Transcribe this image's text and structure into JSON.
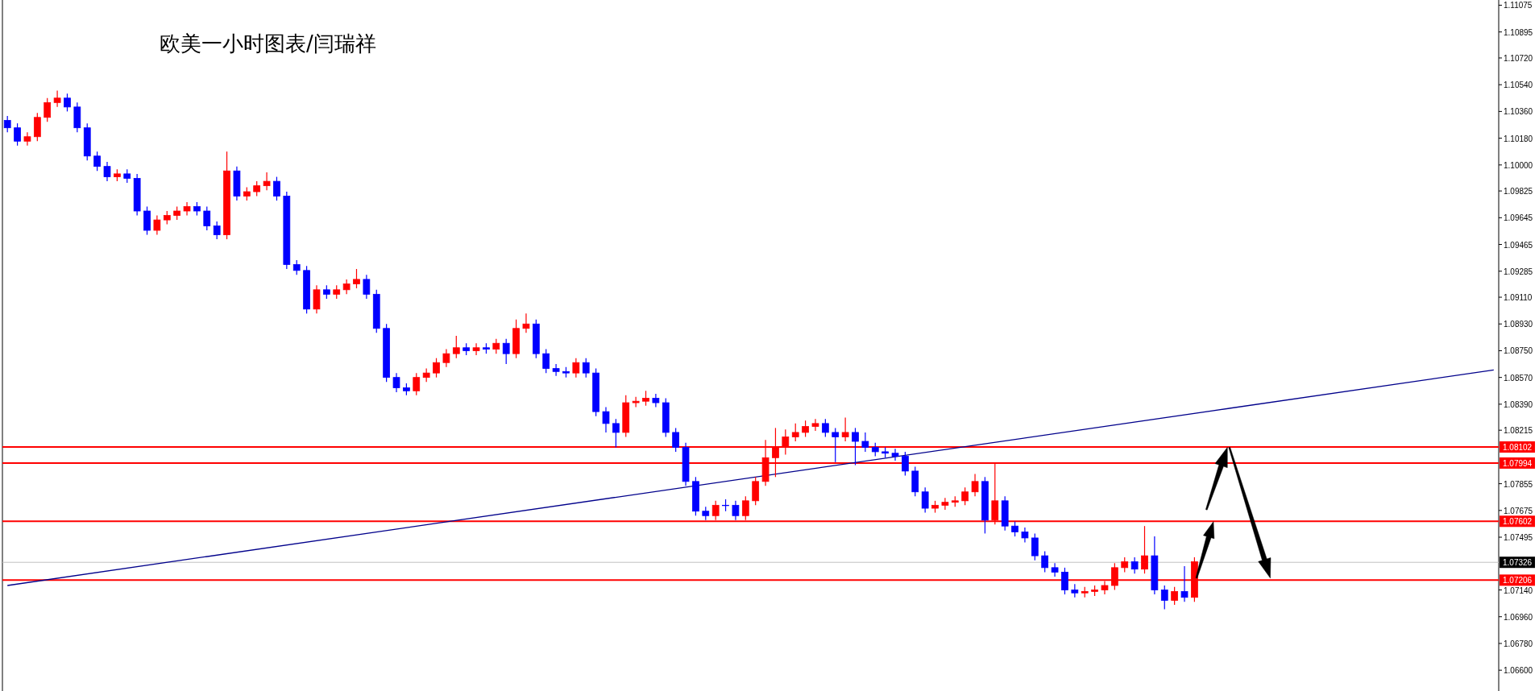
{
  "chart_data": {
    "type": "candlestick",
    "title": "欧美一小时图表/闫瑞祥",
    "categories": [
      null,
      null,
      null,
      null,
      null,
      null,
      null,
      null,
      null,
      null,
      null,
      null,
      null,
      null,
      null,
      null,
      null,
      null,
      null,
      null,
      null,
      null,
      null,
      null,
      null,
      null,
      null,
      null,
      null,
      null,
      null,
      null,
      null,
      null,
      null,
      null,
      null,
      null,
      null,
      null,
      null,
      null,
      null,
      null,
      null,
      null,
      null,
      null,
      null,
      null,
      null,
      null,
      null,
      null,
      null,
      null,
      null,
      null,
      null,
      null,
      null,
      null,
      null,
      null,
      null,
      null,
      null,
      null,
      null,
      null,
      null,
      null,
      null,
      null,
      null,
      null,
      null,
      null,
      null,
      null,
      null,
      null,
      null,
      null,
      null,
      null,
      null,
      null,
      null,
      null,
      null,
      null,
      null,
      null,
      null,
      null,
      null,
      null,
      null,
      null,
      null,
      null,
      null,
      null,
      null,
      null,
      null,
      null,
      null,
      null,
      null,
      null,
      null,
      null,
      null,
      null,
      null,
      null,
      null,
      null,
      null,
      null,
      null,
      null,
      null,
      null,
      null,
      null,
      null,
      null,
      null,
      null,
      null,
      null,
      null,
      null,
      null,
      null,
      null,
      null,
      null,
      null,
      null,
      null,
      null,
      null,
      null,
      null,
      null,
      null
    ],
    "ohlc": [
      [
        1.103,
        1.1033,
        1.1022,
        1.1025
      ],
      [
        1.1025,
        1.1028,
        1.1013,
        1.1016
      ],
      [
        1.1016,
        1.1022,
        1.1013,
        1.1019
      ],
      [
        1.1019,
        1.1035,
        1.1016,
        1.1032
      ],
      [
        1.1032,
        1.1045,
        1.1029,
        1.1042
      ],
      [
        1.1042,
        1.105,
        1.1039,
        1.1045
      ],
      [
        1.1045,
        1.1048,
        1.1036,
        1.1039
      ],
      [
        1.1039,
        1.1042,
        1.1022,
        1.1025
      ],
      [
        1.1025,
        1.1028,
        1.1003,
        1.1006
      ],
      [
        1.1006,
        1.1009,
        1.0996,
        1.0999
      ],
      [
        1.0999,
        1.1002,
        1.0989,
        1.0992
      ],
      [
        1.0992,
        1.0997,
        1.0989,
        1.0994
      ],
      [
        1.0994,
        1.0997,
        1.0988,
        1.0991
      ],
      [
        1.0991,
        1.0994,
        1.0966,
        1.0969
      ],
      [
        1.0969,
        1.0972,
        1.0953,
        1.0956
      ],
      [
        1.0956,
        1.0966,
        1.0953,
        1.0963
      ],
      [
        1.0963,
        1.0969,
        1.096,
        1.0966
      ],
      [
        1.0966,
        1.0972,
        1.0963,
        1.0969
      ],
      [
        1.0969,
        1.0975,
        1.0966,
        1.0972
      ],
      [
        1.0972,
        1.0975,
        1.0966,
        1.0969
      ],
      [
        1.0969,
        1.0972,
        1.0956,
        1.0959
      ],
      [
        1.0959,
        1.0962,
        1.095,
        1.0953
      ],
      [
        1.0953,
        1.1009,
        1.095,
        1.0996
      ],
      [
        1.0996,
        1.0999,
        1.0976,
        1.0979
      ],
      [
        1.0979,
        1.0985,
        1.0976,
        1.0982
      ],
      [
        1.0982,
        1.0989,
        1.0979,
        1.0986
      ],
      [
        1.0986,
        1.0995,
        1.0983,
        1.0989
      ],
      [
        1.0989,
        1.0992,
        1.0976,
        1.0979
      ],
      [
        1.0979,
        1.0982,
        1.093,
        1.0933
      ],
      [
        1.0933,
        1.0936,
        1.0926,
        1.0929
      ],
      [
        1.0929,
        1.0932,
        1.09,
        1.0903
      ],
      [
        1.0903,
        1.0919,
        1.09,
        1.0916
      ],
      [
        1.0916,
        1.0919,
        1.091,
        1.0913
      ],
      [
        1.0913,
        1.0919,
        1.091,
        1.0916
      ],
      [
        1.0916,
        1.0923,
        1.0913,
        1.092
      ],
      [
        1.092,
        1.093,
        1.0917,
        1.0923
      ],
      [
        1.0923,
        1.0926,
        1.091,
        1.0913
      ],
      [
        1.0913,
        1.0916,
        1.0887,
        1.089
      ],
      [
        1.089,
        1.0893,
        1.0854,
        1.0857
      ],
      [
        1.0857,
        1.086,
        1.0847,
        1.085
      ],
      [
        1.085,
        1.0853,
        1.0845,
        1.0848
      ],
      [
        1.0848,
        1.086,
        1.0845,
        1.0857
      ],
      [
        1.0857,
        1.0863,
        1.0854,
        1.086
      ],
      [
        1.086,
        1.087,
        1.0857,
        1.0867
      ],
      [
        1.0867,
        1.0876,
        1.0864,
        1.0873
      ],
      [
        1.0873,
        1.0885,
        1.087,
        1.0877
      ],
      [
        1.0877,
        1.088,
        1.0872,
        1.0875
      ],
      [
        1.0875,
        1.088,
        1.0872,
        1.0877
      ],
      [
        1.0877,
        1.088,
        1.0873,
        1.0876
      ],
      [
        1.0876,
        1.0883,
        1.0873,
        1.088
      ],
      [
        1.088,
        1.0883,
        1.0866,
        1.0873
      ],
      [
        1.0873,
        1.0896,
        1.087,
        1.089
      ],
      [
        1.089,
        1.09,
        1.0887,
        1.0893
      ],
      [
        1.0893,
        1.0896,
        1.087,
        1.0873
      ],
      [
        1.0873,
        1.0876,
        1.086,
        1.0863
      ],
      [
        1.0863,
        1.0866,
        1.0858,
        1.0861
      ],
      [
        1.0861,
        1.0864,
        1.0857,
        1.086
      ],
      [
        1.086,
        1.087,
        1.0857,
        1.0867
      ],
      [
        1.0867,
        1.087,
        1.0857,
        1.086
      ],
      [
        1.086,
        1.0863,
        1.0831,
        1.0834
      ],
      [
        1.0834,
        1.0837,
        1.082,
        1.0826
      ],
      [
        1.0826,
        1.0829,
        1.081,
        1.082
      ],
      [
        1.082,
        1.0845,
        1.0817,
        1.084
      ],
      [
        1.084,
        1.0844,
        1.0837,
        1.0841
      ],
      [
        1.0841,
        1.0848,
        1.0838,
        1.0843
      ],
      [
        1.0843,
        1.0846,
        1.0837,
        1.084
      ],
      [
        1.084,
        1.0843,
        1.0817,
        1.082
      ],
      [
        1.082,
        1.0823,
        1.0807,
        1.081
      ],
      [
        1.081,
        1.0813,
        1.0784,
        1.0787
      ],
      [
        1.0787,
        1.079,
        1.0764,
        1.0767
      ],
      [
        1.0767,
        1.077,
        1.0761,
        1.0764
      ],
      [
        1.0764,
        1.0774,
        1.0761,
        1.0771
      ],
      [
        1.0771,
        1.0775,
        1.0767,
        1.0771
      ],
      [
        1.0771,
        1.0774,
        1.0761,
        1.0764
      ],
      [
        1.0764,
        1.0777,
        1.0761,
        1.0774
      ],
      [
        1.0774,
        1.079,
        1.0771,
        1.0787
      ],
      [
        1.0787,
        1.0815,
        1.0784,
        1.0803
      ],
      [
        1.0803,
        1.0823,
        1.079,
        1.081
      ],
      [
        1.081,
        1.0822,
        1.0805,
        1.0817
      ],
      [
        1.0817,
        1.0826,
        1.0814,
        1.082
      ],
      [
        1.082,
        1.0828,
        1.0817,
        1.0824
      ],
      [
        1.0824,
        1.0829,
        1.0821,
        1.0826
      ],
      [
        1.0826,
        1.0829,
        1.0817,
        1.082
      ],
      [
        1.082,
        1.0823,
        1.08,
        1.0817
      ],
      [
        1.0817,
        1.083,
        1.0814,
        1.082
      ],
      [
        1.082,
        1.0823,
        1.0798,
        1.0814
      ],
      [
        1.0814,
        1.082,
        1.0807,
        1.081
      ],
      [
        1.081,
        1.0813,
        1.0804,
        1.0807
      ],
      [
        1.0807,
        1.081,
        1.0803,
        1.0806
      ],
      [
        1.0806,
        1.0809,
        1.0801,
        1.0804
      ],
      [
        1.0804,
        1.0807,
        1.0791,
        1.0794
      ],
      [
        1.0794,
        1.0797,
        1.0777,
        1.078
      ],
      [
        1.078,
        1.0783,
        1.0766,
        1.0769
      ],
      [
        1.0769,
        1.0774,
        1.0766,
        1.0771
      ],
      [
        1.0771,
        1.0776,
        1.0768,
        1.0773
      ],
      [
        1.0773,
        1.0777,
        1.077,
        1.0774
      ],
      [
        1.0774,
        1.0783,
        1.0771,
        1.078
      ],
      [
        1.078,
        1.0792,
        1.0777,
        1.0787
      ],
      [
        1.0787,
        1.079,
        1.0752,
        1.0761
      ],
      [
        1.0761,
        1.0799,
        1.0758,
        1.0774
      ],
      [
        1.0774,
        1.0777,
        1.0754,
        1.0757
      ],
      [
        1.0757,
        1.076,
        1.075,
        1.0753
      ],
      [
        1.0753,
        1.0756,
        1.0746,
        1.0749
      ],
      [
        1.0749,
        1.0752,
        1.0734,
        1.0737
      ],
      [
        1.0737,
        1.074,
        1.0726,
        1.0729
      ],
      [
        1.0729,
        1.0732,
        1.0723,
        1.0726
      ],
      [
        1.0726,
        1.0729,
        1.0711,
        1.0714
      ],
      [
        1.0714,
        1.0718,
        1.0709,
        1.0712
      ],
      [
        1.0712,
        1.0716,
        1.0709,
        1.0713
      ],
      [
        1.0713,
        1.0717,
        1.071,
        1.0714
      ],
      [
        1.0714,
        1.072,
        1.0711,
        1.0717
      ],
      [
        1.0717,
        1.0732,
        1.0714,
        1.0729
      ],
      [
        1.0729,
        1.0736,
        1.0726,
        1.0733
      ],
      [
        1.0733,
        1.0736,
        1.0725,
        1.0728
      ],
      [
        1.0728,
        1.0757,
        1.0725,
        1.0737
      ],
      [
        1.0737,
        1.075,
        1.0711,
        1.0714
      ],
      [
        1.0714,
        1.0717,
        1.0701,
        1.0707
      ],
      [
        1.0707,
        1.0716,
        1.0704,
        1.0713
      ],
      [
        1.0713,
        1.073,
        1.0706,
        1.0709
      ],
      [
        1.0709,
        1.0736,
        1.0706,
        1.0733
      ],
      null,
      null,
      null,
      null,
      null,
      null,
      null,
      null,
      null,
      null,
      null,
      null,
      null,
      null,
      null,
      null,
      null,
      null,
      null,
      null,
      null,
      null,
      null,
      null,
      null,
      null,
      null,
      null,
      null,
      null
    ],
    "colors": [
      "#0000ff",
      "#0000ff",
      "#ff0000",
      "#ff0000",
      "#ff0000",
      "#ff0000",
      "#0000ff",
      "#0000ff",
      "#0000ff",
      "#0000ff",
      "#0000ff",
      "#ff0000",
      "#0000ff",
      "#0000ff",
      "#0000ff",
      "#ff0000",
      "#ff0000",
      "#ff0000",
      "#ff0000",
      "#0000ff",
      "#0000ff",
      "#0000ff",
      "#ff0000",
      "#0000ff",
      "#ff0000",
      "#ff0000",
      "#ff0000",
      "#0000ff",
      "#0000ff",
      "#0000ff",
      "#0000ff",
      "#ff0000",
      "#0000ff",
      "#ff0000",
      "#ff0000",
      "#ff0000",
      "#0000ff",
      "#0000ff",
      "#0000ff",
      "#0000ff",
      "#0000ff",
      "#ff0000",
      "#ff0000",
      "#ff0000",
      "#ff0000",
      "#ff0000",
      "#0000ff",
      "#ff0000",
      "#0000ff",
      "#ff0000",
      "#0000ff",
      "#ff0000",
      "#ff0000",
      "#0000ff",
      "#0000ff",
      "#0000ff",
      "#0000ff",
      "#ff0000",
      "#0000ff",
      "#0000ff",
      "#0000ff",
      "#0000ff",
      "#ff0000",
      "#ff0000",
      "#ff0000",
      "#0000ff",
      "#0000ff",
      "#0000ff",
      "#0000ff",
      "#0000ff",
      "#0000ff",
      "#ff0000",
      "#0000ff",
      "#0000ff",
      "#ff0000",
      "#ff0000",
      "#ff0000",
      "#ff0000",
      "#ff0000",
      "#ff0000",
      "#ff0000",
      "#ff0000",
      "#0000ff",
      "#0000ff",
      "#ff0000",
      "#0000ff",
      "#0000ff",
      "#0000ff",
      "#0000ff",
      "#0000ff",
      "#0000ff",
      "#0000ff",
      "#0000ff",
      "#ff0000",
      "#ff0000",
      "#ff0000",
      "#ff0000",
      "#ff0000",
      "#0000ff",
      "#ff0000",
      "#0000ff",
      "#0000ff",
      "#0000ff",
      "#0000ff",
      "#0000ff",
      "#0000ff",
      "#0000ff",
      "#0000ff",
      "#ff0000",
      "#ff0000",
      "#ff0000",
      "#ff0000",
      "#ff0000",
      "#0000ff",
      "#ff0000",
      "#0000ff",
      "#0000ff",
      "#ff0000",
      "#0000ff",
      "#ff0000",
      null,
      null,
      null,
      null,
      null,
      null,
      null,
      null,
      null,
      null,
      null,
      null,
      null,
      null,
      null,
      null,
      null,
      null,
      null,
      null,
      null,
      null,
      null,
      null,
      null,
      null,
      null,
      null,
      null,
      null
    ],
    "series": [
      {
        "type": "line",
        "color": "#00008b",
        "values": [
          1.0717,
          null,
          null,
          null,
          null,
          null,
          null,
          null,
          null,
          null,
          null,
          null,
          null,
          null,
          null,
          null,
          null,
          null,
          null,
          null,
          null,
          null,
          null,
          null,
          null,
          null,
          null,
          null,
          null,
          null,
          null,
          null,
          null,
          null,
          null,
          null,
          null,
          null,
          null,
          null,
          null,
          null,
          null,
          null,
          null,
          null,
          null,
          null,
          null,
          null,
          null,
          null,
          null,
          null,
          null,
          null,
          null,
          null,
          null,
          null,
          null,
          null,
          null,
          null,
          null,
          null,
          null,
          null,
          null,
          null,
          null,
          null,
          null,
          null,
          null,
          null,
          null,
          null,
          null,
          null,
          null,
          null,
          null,
          null,
          null,
          null,
          null,
          null,
          null,
          null,
          null,
          null,
          null,
          null,
          null,
          null,
          null,
          null,
          null,
          null,
          null,
          null,
          null,
          null,
          null,
          null,
          null,
          null,
          null,
          null,
          null,
          null,
          null,
          null,
          null,
          null,
          null,
          null,
          null,
          null,
          null,
          null,
          null,
          null,
          null,
          null,
          null,
          null,
          null,
          null,
          null,
          null,
          null,
          null,
          null,
          null,
          null,
          null,
          null,
          null,
          null,
          null,
          null,
          null,
          null,
          null,
          null,
          null,
          null,
          1.0862
        ]
      }
    ],
    "ylim": [
      1.0646,
      1.1111
    ],
    "yticks": [
      {
        "value": 1.11075,
        "label": "1.11075"
      },
      {
        "value": 1.10895,
        "label": "1.10895"
      },
      {
        "value": 1.1072,
        "label": "1.10720"
      },
      {
        "value": 1.1054,
        "label": "1.10540"
      },
      {
        "value": 1.1036,
        "label": "1.10360"
      },
      {
        "value": 1.1018,
        "label": "1.10180"
      },
      {
        "value": 1.1,
        "label": "1.10000"
      },
      {
        "value": 1.09825,
        "label": "1.09825"
      },
      {
        "value": 1.09645,
        "label": "1.09645"
      },
      {
        "value": 1.09465,
        "label": "1.09465"
      },
      {
        "value": 1.09285,
        "label": "1.09285"
      },
      {
        "value": 1.0911,
        "label": "1.09110"
      },
      {
        "value": 1.0893,
        "label": "1.08930"
      },
      {
        "value": 1.0875,
        "label": "1.08750"
      },
      {
        "value": 1.0857,
        "label": "1.08570"
      },
      {
        "value": 1.0839,
        "label": "1.08390"
      },
      {
        "value": 1.08215,
        "label": "1.08215"
      },
      {
        "value": 1.07855,
        "label": "1.07855"
      },
      {
        "value": 1.07675,
        "label": "1.07675"
      },
      {
        "value": 1.07495,
        "label": "1.07495"
      },
      {
        "value": 1.0714,
        "label": "1.07140"
      },
      {
        "value": 1.0696,
        "label": "1.06960"
      },
      {
        "value": 1.0678,
        "label": "1.06780"
      },
      {
        "value": 1.066,
        "label": "1.06600"
      }
    ],
    "ref_lines": [
      {
        "axis": "y",
        "value": 1.08102,
        "label": "1.08102",
        "color": "#ff0000"
      },
      {
        "axis": "y",
        "value": 1.07994,
        "label": "1.07994",
        "color": "#ff0000"
      },
      {
        "axis": "y",
        "value": 1.07602,
        "label": "1.07602",
        "color": "#ff0000"
      },
      {
        "axis": "y",
        "value": 1.07206,
        "label": "1.07206",
        "color": "#ff0000"
      },
      {
        "axis": "y",
        "value": 1.07326,
        "label": "1.07326",
        "color": "#c0c0c0"
      }
    ]
  }
}
